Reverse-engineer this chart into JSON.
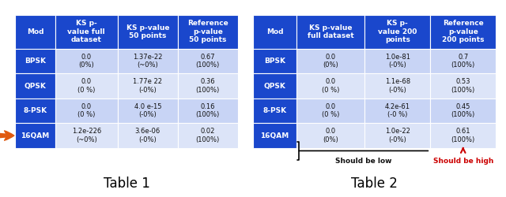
{
  "table1": {
    "headers": [
      "Mod",
      "KS p-\nvalue full\ndataset",
      "KS p-value\n50 points",
      "Reference\np-value\n50 points"
    ],
    "rows": [
      [
        "BPSK",
        "0.0\n(0%)",
        "1.37e-22\n(~0%)",
        "0.67\n(100%)"
      ],
      [
        "QPSK",
        "0.0\n(0 %)",
        "1.77e 22\n(-0%)",
        "0.36\n(100%)"
      ],
      [
        "8-PSK",
        "0.0\n(0 %)",
        "4.0 e-15\n(-0%)",
        "0.16\n(100%)"
      ],
      [
        "16QAM",
        "1.2e-226\n(~0%)",
        "3.6e-06\n(-0%)",
        "0.02\n(100%)"
      ]
    ],
    "arrow_row": 3,
    "title": "Table 1"
  },
  "table2": {
    "headers": [
      "Mod",
      "KS p-value\nfull dataset",
      "KS p-\nvalue 200\npoints",
      "Reference\np-value\n200 points"
    ],
    "rows": [
      [
        "BPSK",
        "0.0\n(0%)",
        "1.0e-81\n(-0%)",
        "0.7\n(100%)"
      ],
      [
        "QPSK",
        "0.0\n(0 %)",
        "1.1e-68\n(-0%)",
        "0.53\n(100%)"
      ],
      [
        "8-PSK",
        "0.0\n(0 %)",
        "4.2e-61\n(-0 %)",
        "0.45\n(100%)"
      ],
      [
        "16QAM",
        "0.0\n(0%)",
        "1.0e-22\n(-0%)",
        "0.61\n(100%)"
      ]
    ],
    "title": "Table 2",
    "annotation_low": "Should be low",
    "annotation_high": "Should be high"
  },
  "header_bg": "#1a47cc",
  "header_fg": "#ffffff",
  "mod_col_bg": "#1a47cc",
  "mod_col_fg": "#ffffff",
  "row_bg_odd": "#c8d4f5",
  "row_bg_even": "#dce4f8",
  "cell_fg": "#111111",
  "arrow_color": "#e05a10",
  "annotation_low_color": "#111111",
  "annotation_high_color": "#cc0000",
  "title_fontsize": 12,
  "header_fontsize": 6.5,
  "cell_fontsize": 6.0,
  "mod_fontsize": 6.5
}
